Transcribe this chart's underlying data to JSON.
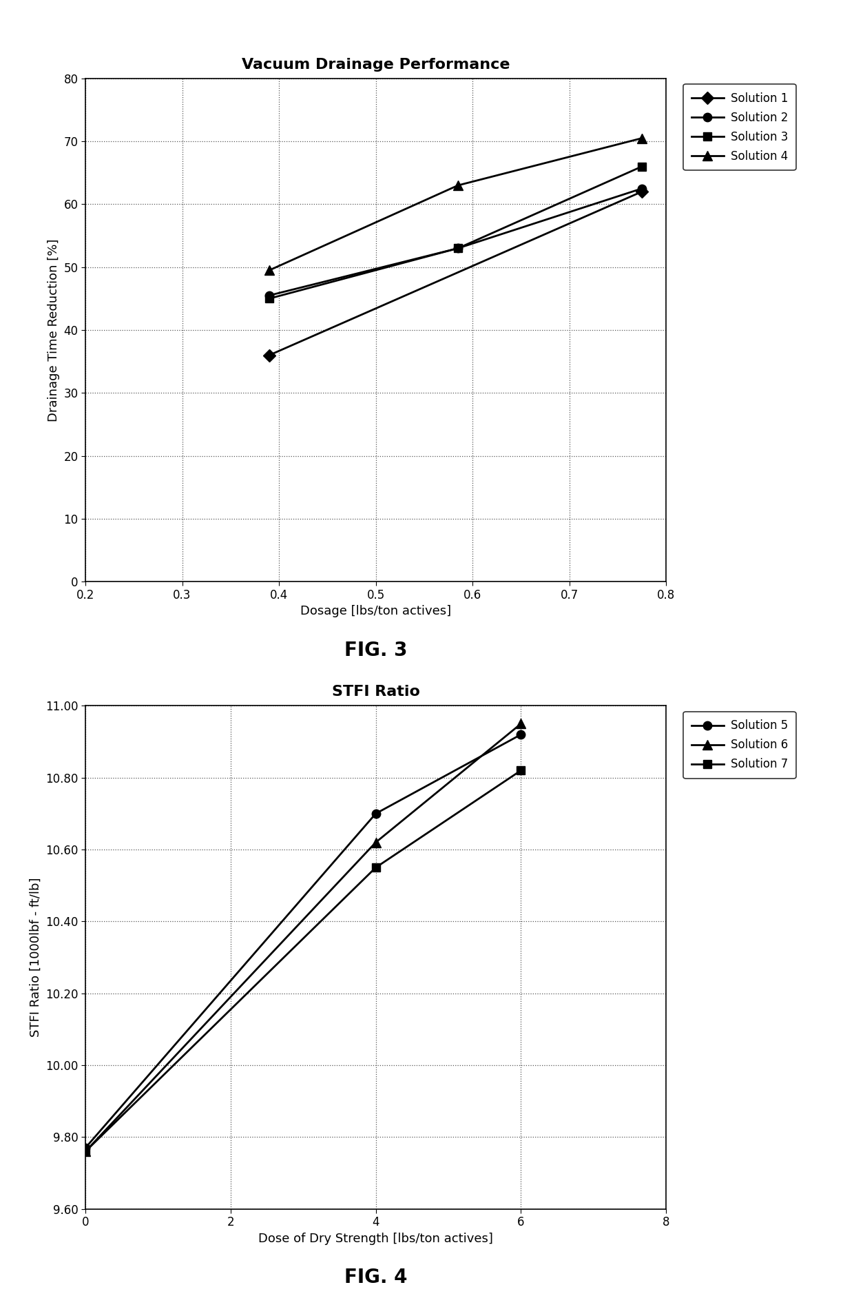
{
  "fig3": {
    "title": "Vacuum Drainage Performance",
    "xlabel": "Dosage [lbs/ton actives]",
    "ylabel": "Drainage Time Reduction [%]",
    "xlim": [
      0.2,
      0.8
    ],
    "ylim": [
      0,
      80
    ],
    "xticks": [
      0.2,
      0.3,
      0.4,
      0.5,
      0.6,
      0.7,
      0.8
    ],
    "yticks": [
      0,
      10,
      20,
      30,
      40,
      50,
      60,
      70,
      80
    ],
    "series": [
      {
        "label": "Solution 1",
        "x": [
          0.39,
          0.775
        ],
        "y": [
          36,
          62
        ],
        "marker": "D",
        "color": "#000000",
        "markersize": 9,
        "linewidth": 2.0
      },
      {
        "label": "Solution 2",
        "x": [
          0.39,
          0.585,
          0.775
        ],
        "y": [
          45.5,
          53,
          62.5
        ],
        "marker": "o",
        "color": "#000000",
        "markersize": 9,
        "linewidth": 2.0
      },
      {
        "label": "Solution 3",
        "x": [
          0.39,
          0.585,
          0.775
        ],
        "y": [
          45,
          53,
          66
        ],
        "marker": "s",
        "color": "#000000",
        "markersize": 9,
        "linewidth": 2.0
      },
      {
        "label": "Solution 4",
        "x": [
          0.39,
          0.585,
          0.775
        ],
        "y": [
          49.5,
          63,
          70.5
        ],
        "marker": "^",
        "color": "#000000",
        "markersize": 10,
        "linewidth": 2.0
      }
    ],
    "fig_label": "FIG. 3"
  },
  "fig4": {
    "title": "STFI Ratio",
    "xlabel": "Dose of Dry Strength [lbs/ton actives]",
    "ylabel": "STFI Ratio [1000lbf - ft/lb]",
    "xlim": [
      0,
      8
    ],
    "ylim": [
      9.6,
      11.0
    ],
    "xticks": [
      0,
      2,
      4,
      6,
      8
    ],
    "yticks": [
      9.6,
      9.8,
      10.0,
      10.2,
      10.4,
      10.6,
      10.8,
      11.0
    ],
    "series": [
      {
        "label": "Solution 5",
        "x": [
          0,
          4,
          6
        ],
        "y": [
          9.77,
          10.7,
          10.92
        ],
        "marker": "o",
        "color": "#000000",
        "markersize": 9,
        "linewidth": 2.0
      },
      {
        "label": "Solution 6",
        "x": [
          0,
          4,
          6
        ],
        "y": [
          9.76,
          10.62,
          10.95
        ],
        "marker": "^",
        "color": "#000000",
        "markersize": 10,
        "linewidth": 2.0
      },
      {
        "label": "Solution 7",
        "x": [
          0,
          4,
          6
        ],
        "y": [
          9.76,
          10.55,
          10.82
        ],
        "marker": "s",
        "color": "#000000",
        "markersize": 9,
        "linewidth": 2.0
      }
    ],
    "fig_label": "FIG. 4"
  },
  "font_title": 16,
  "font_label": 13,
  "font_tick": 12,
  "font_legend": 12,
  "font_figlabel": 20,
  "background": "#ffffff",
  "grid_color": "#555555",
  "grid_linestyle": ":",
  "grid_linewidth": 0.9
}
